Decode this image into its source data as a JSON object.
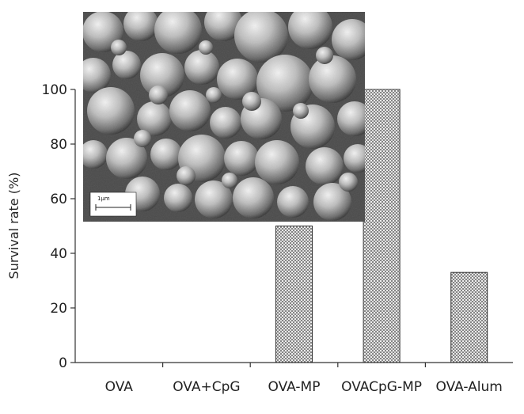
{
  "chart_data": {
    "type": "bar",
    "categories": [
      "OVA",
      "OVA+CpG",
      "OVA-MP",
      "OVACpG-MP",
      "OVA-Alum"
    ],
    "values": [
      0,
      0,
      50,
      100,
      33
    ],
    "ylabel": "Survival rate (%)",
    "xlabel": "",
    "ylim": [
      0,
      100
    ],
    "yticks": [
      0,
      20,
      40,
      60,
      80,
      100
    ],
    "grid": false,
    "bar_pattern": "stippled",
    "bar_color": "#555555"
  },
  "inset": {
    "scale_label": "1μm"
  }
}
